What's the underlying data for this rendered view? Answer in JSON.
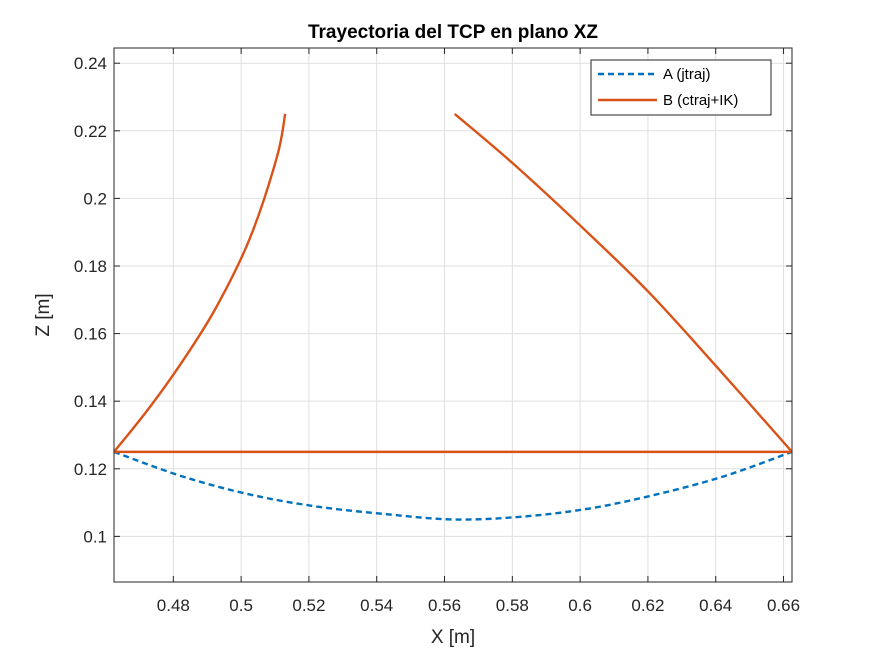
{
  "chart_data": {
    "type": "line",
    "title": "Trayectoria del TCP en plano XZ",
    "xlabel": "X [m]",
    "ylabel": "Z [m]",
    "xlim": [
      0.4625,
      0.6625
    ],
    "ylim": [
      0.0865,
      0.2445
    ],
    "xticks": [
      "0.48",
      "0.5",
      "0.52",
      "0.54",
      "0.56",
      "0.58",
      "0.6",
      "0.62",
      "0.64",
      "0.66"
    ],
    "xtick_values": [
      0.48,
      0.5,
      0.52,
      0.54,
      0.56,
      0.58,
      0.6,
      0.62,
      0.64,
      0.66
    ],
    "yticks": [
      "0.1",
      "0.12",
      "0.14",
      "0.16",
      "0.18",
      "0.2",
      "0.22",
      "0.24"
    ],
    "ytick_values": [
      0.1,
      0.12,
      0.14,
      0.16,
      0.18,
      0.2,
      0.22,
      0.24
    ],
    "grid": true,
    "legend_position": "top-right",
    "series": [
      {
        "name": "A (jtraj)",
        "color": "#0072BD",
        "style": "dashed",
        "x": [
          0.4625,
          0.4825,
          0.5025,
          0.5225,
          0.5425,
          0.5625,
          0.5825,
          0.6025,
          0.6225,
          0.6425,
          0.6625
        ],
        "y": [
          0.125,
          0.1178,
          0.1124,
          0.1088,
          0.1066,
          0.105,
          0.1058,
          0.1082,
          0.1124,
          0.1178,
          0.125
        ]
      },
      {
        "name": "B (ctraj+IK)",
        "color": "#D95319",
        "style": "solid",
        "segments": [
          {
            "x": [
              0.4625,
              0.4725,
              0.4825,
              0.4925,
              0.5025,
              0.5105,
              0.513
            ],
            "y": [
              0.125,
              0.1375,
              0.1515,
              0.1675,
              0.188,
              0.212,
              0.225
            ]
          },
          {
            "x": [
              0.4625,
              0.6625
            ],
            "y": [
              0.125,
              0.125
            ]
          },
          {
            "x": [
              0.563,
              0.58,
              0.6,
              0.62,
              0.64,
              0.6625
            ],
            "y": [
              0.225,
              0.2105,
              0.192,
              0.1725,
              0.1505,
              0.125
            ]
          }
        ]
      }
    ]
  }
}
